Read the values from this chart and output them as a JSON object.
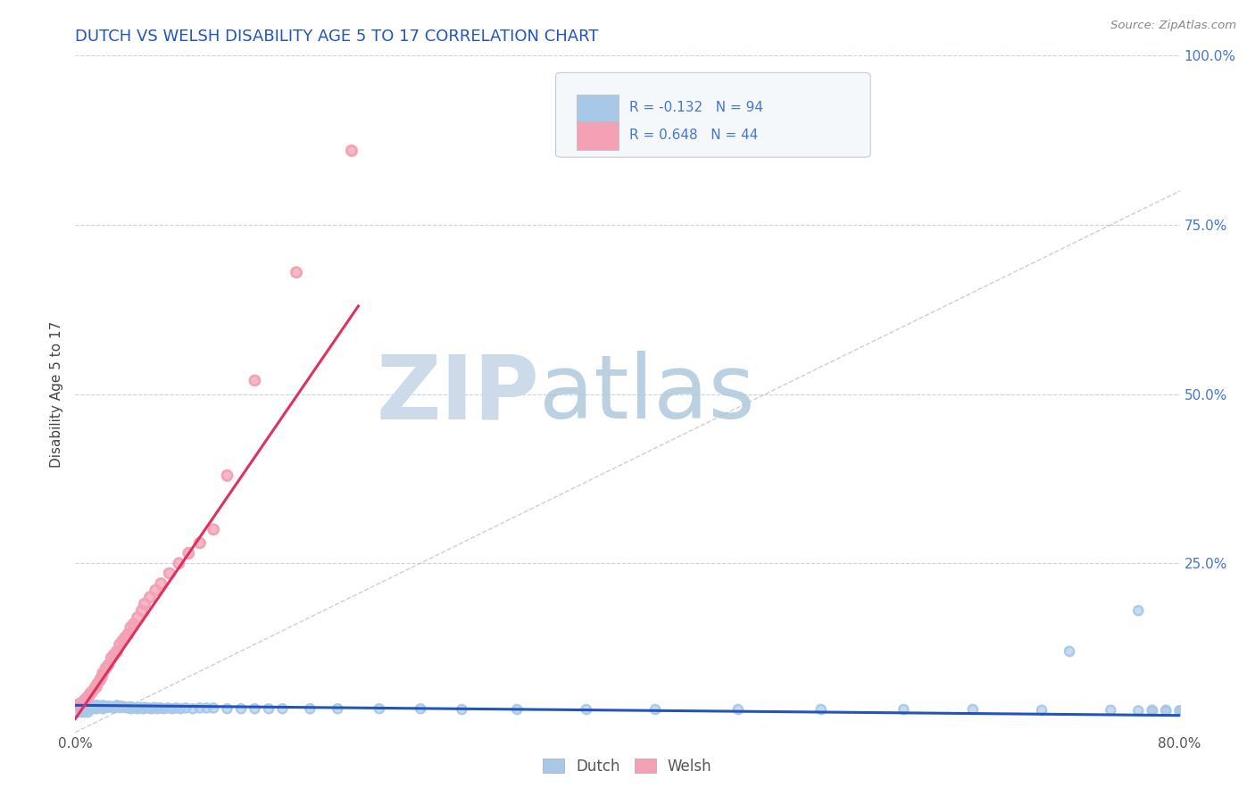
{
  "title": "DUTCH VS WELSH DISABILITY AGE 5 TO 17 CORRELATION CHART",
  "source_text": "Source: ZipAtlas.com",
  "ylabel": "Disability Age 5 to 17",
  "xlim": [
    0.0,
    0.8
  ],
  "ylim": [
    0.0,
    1.0
  ],
  "dutch_R": -0.132,
  "dutch_N": 94,
  "welsh_R": 0.648,
  "welsh_N": 44,
  "dutch_color": "#a8c8e8",
  "welsh_color": "#f4a0b5",
  "dutch_line_color": "#2255bb",
  "welsh_line_color": "#e03060",
  "diag_color": "#bbbbbb",
  "title_color": "#2255bb",
  "watermark_zip_color": "#c8d8ec",
  "watermark_atlas_color": "#b0c8dc",
  "right_tick_color": "#4477cc",
  "xtick_labels": [
    "0.0%",
    "80.0%"
  ],
  "xtick_vals": [
    0.0,
    0.8
  ],
  "right_ytick_vals": [
    1.0,
    0.75,
    0.5,
    0.25
  ],
  "right_ytick_labels": [
    "100.0%",
    "75.0%",
    "50.0%",
    "25.0%"
  ],
  "hgrid_vals": [
    0.25,
    0.5,
    0.75,
    1.0
  ],
  "dutch_x": [
    0.0,
    0.002,
    0.003,
    0.004,
    0.005,
    0.006,
    0.007,
    0.008,
    0.009,
    0.01,
    0.01,
    0.012,
    0.013,
    0.015,
    0.015,
    0.016,
    0.017,
    0.018,
    0.018,
    0.019,
    0.02,
    0.02,
    0.021,
    0.022,
    0.023,
    0.024,
    0.025,
    0.026,
    0.027,
    0.028,
    0.03,
    0.031,
    0.032,
    0.033,
    0.034,
    0.035,
    0.036,
    0.038,
    0.039,
    0.04,
    0.04,
    0.041,
    0.043,
    0.045,
    0.047,
    0.048,
    0.049,
    0.05,
    0.051,
    0.053,
    0.055,
    0.057,
    0.059,
    0.06,
    0.062,
    0.064,
    0.067,
    0.07,
    0.073,
    0.076,
    0.08,
    0.085,
    0.09,
    0.095,
    0.1,
    0.11,
    0.12,
    0.13,
    0.14,
    0.15,
    0.17,
    0.19,
    0.22,
    0.25,
    0.28,
    0.32,
    0.37,
    0.42,
    0.48,
    0.54,
    0.6,
    0.65,
    0.7,
    0.72,
    0.75,
    0.77,
    0.78,
    0.79,
    0.8,
    0.8,
    0.8,
    0.79,
    0.78,
    0.77
  ],
  "dutch_y": [
    0.04,
    0.03,
    0.04,
    0.03,
    0.04,
    0.03,
    0.04,
    0.035,
    0.03,
    0.04,
    0.035,
    0.04,
    0.035,
    0.04,
    0.035,
    0.04,
    0.038,
    0.038,
    0.037,
    0.036,
    0.04,
    0.035,
    0.038,
    0.038,
    0.037,
    0.039,
    0.038,
    0.038,
    0.037,
    0.036,
    0.04,
    0.038,
    0.037,
    0.039,
    0.038,
    0.038,
    0.037,
    0.037,
    0.036,
    0.038,
    0.035,
    0.037,
    0.036,
    0.035,
    0.037,
    0.036,
    0.035,
    0.037,
    0.036,
    0.036,
    0.035,
    0.037,
    0.035,
    0.036,
    0.036,
    0.035,
    0.036,
    0.035,
    0.036,
    0.035,
    0.036,
    0.035,
    0.036,
    0.036,
    0.036,
    0.035,
    0.035,
    0.035,
    0.035,
    0.035,
    0.035,
    0.035,
    0.035,
    0.035,
    0.034,
    0.034,
    0.034,
    0.034,
    0.034,
    0.034,
    0.034,
    0.034,
    0.033,
    0.12,
    0.033,
    0.18,
    0.033,
    0.033,
    0.032,
    0.032,
    0.032,
    0.032,
    0.032,
    0.032
  ],
  "welsh_x": [
    0.0,
    0.002,
    0.003,
    0.004,
    0.005,
    0.006,
    0.007,
    0.008,
    0.009,
    0.01,
    0.011,
    0.012,
    0.014,
    0.015,
    0.016,
    0.018,
    0.019,
    0.02,
    0.022,
    0.024,
    0.026,
    0.028,
    0.03,
    0.032,
    0.034,
    0.036,
    0.038,
    0.04,
    0.042,
    0.045,
    0.048,
    0.05,
    0.054,
    0.058,
    0.062,
    0.068,
    0.075,
    0.082,
    0.09,
    0.1,
    0.11,
    0.13,
    0.16,
    0.2
  ],
  "welsh_y": [
    0.04,
    0.04,
    0.042,
    0.043,
    0.044,
    0.046,
    0.048,
    0.05,
    0.052,
    0.055,
    0.058,
    0.06,
    0.065,
    0.068,
    0.072,
    0.078,
    0.082,
    0.088,
    0.095,
    0.1,
    0.11,
    0.115,
    0.12,
    0.13,
    0.135,
    0.14,
    0.145,
    0.155,
    0.16,
    0.17,
    0.18,
    0.19,
    0.2,
    0.21,
    0.22,
    0.235,
    0.25,
    0.265,
    0.28,
    0.3,
    0.38,
    0.52,
    0.68,
    0.86
  ],
  "dutch_line_x": [
    0.0,
    0.8
  ],
  "dutch_line_y": [
    0.04,
    0.025
  ],
  "welsh_line_x": [
    0.0,
    0.205
  ],
  "welsh_line_y": [
    0.02,
    0.63
  ]
}
